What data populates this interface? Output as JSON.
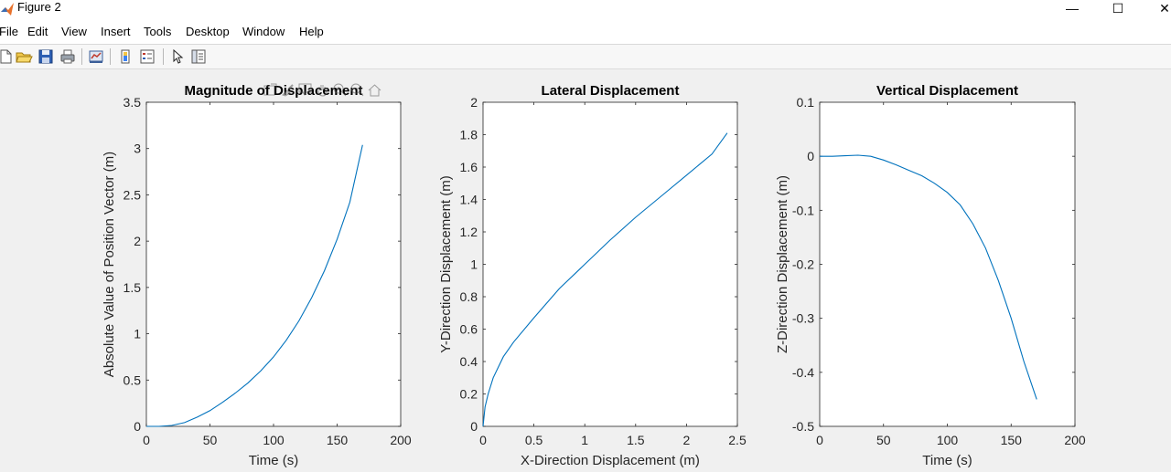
{
  "window": {
    "title": "Figure 2",
    "minimize_glyph": "—",
    "maximize_glyph": "☐",
    "close_glyph": "✕",
    "app_icon": "matlab-icon"
  },
  "menu": [
    "File",
    "Edit",
    "View",
    "Insert",
    "Tools",
    "Desktop",
    "Window",
    "Help"
  ],
  "toolbar": {
    "buttons": [
      "new-figure-icon",
      "open-file-icon",
      "save-icon",
      "print-icon",
      "link-plot-icon",
      "insert-colorbar-icon",
      "insert-legend-icon",
      "select-pointer-icon",
      "property-inspector-icon"
    ]
  },
  "axes_toolbar": [
    "export-icon",
    "brush-icon",
    "data-tips-icon",
    "pan-icon",
    "zoom-in-icon",
    "zoom-out-icon",
    "home-icon"
  ],
  "chart_data": [
    {
      "type": "line",
      "title": "Magnitude of Displacement",
      "xlabel": "Time (s)",
      "ylabel": "Absolute Value of Position Vector (m)",
      "xlim": [
        0,
        200
      ],
      "ylim": [
        0,
        3.5
      ],
      "xticks": [
        0,
        50,
        100,
        150,
        200
      ],
      "xtick_labels": [
        "0",
        "50",
        "100",
        "150",
        "200"
      ],
      "yticks": [
        0,
        0.5,
        1,
        1.5,
        2,
        2.5,
        3,
        3.5
      ],
      "ytick_labels": [
        "0",
        "0.5",
        "1",
        "1.5",
        "2",
        "2.5",
        "3",
        "3.5"
      ],
      "grid": false,
      "color": "#0072BD",
      "x": [
        0,
        10,
        20,
        30,
        40,
        50,
        60,
        70,
        80,
        90,
        100,
        110,
        120,
        130,
        140,
        150,
        160,
        170
      ],
      "y": [
        0,
        0.0,
        0.01,
        0.04,
        0.1,
        0.17,
        0.26,
        0.36,
        0.47,
        0.6,
        0.75,
        0.93,
        1.14,
        1.39,
        1.68,
        2.02,
        2.42,
        3.04
      ]
    },
    {
      "type": "line",
      "title": "Lateral Displacement",
      "xlabel": "X-Direction Displacement (m)",
      "ylabel": "Y-Direction Displacement (m)",
      "xlim": [
        0,
        2.5
      ],
      "ylim": [
        0,
        2
      ],
      "xticks": [
        0,
        0.5,
        1,
        1.5,
        2,
        2.5
      ],
      "xtick_labels": [
        "0",
        "0.5",
        "1",
        "1.5",
        "2",
        "2.5"
      ],
      "yticks": [
        0,
        0.2,
        0.4,
        0.6,
        0.8,
        1,
        1.2,
        1.4,
        1.6,
        1.8,
        2
      ],
      "ytick_labels": [
        "0",
        "0.2",
        "0.4",
        "0.6",
        "0.8",
        "1",
        "1.2",
        "1.4",
        "1.6",
        "1.8",
        "2"
      ],
      "grid": false,
      "color": "#0072BD",
      "x": [
        0,
        0.02,
        0.05,
        0.1,
        0.2,
        0.3,
        0.5,
        0.75,
        1.0,
        1.25,
        1.5,
        1.75,
        2.0,
        2.25,
        2.4
      ],
      "y": [
        0,
        0.12,
        0.2,
        0.3,
        0.43,
        0.52,
        0.67,
        0.85,
        1.0,
        1.15,
        1.29,
        1.42,
        1.55,
        1.68,
        1.81
      ]
    },
    {
      "type": "line",
      "title": "Vertical Displacement",
      "xlabel": "Time (s)",
      "ylabel": "Z-Direction Displacement (m)",
      "xlim": [
        0,
        200
      ],
      "ylim": [
        -0.5,
        0.1
      ],
      "xticks": [
        0,
        50,
        100,
        150,
        200
      ],
      "xtick_labels": [
        "0",
        "50",
        "100",
        "150",
        "200"
      ],
      "yticks": [
        -0.5,
        -0.4,
        -0.3,
        -0.2,
        -0.1,
        0,
        0.1
      ],
      "ytick_labels": [
        "-0.5",
        "-0.4",
        "-0.3",
        "-0.2",
        "-0.1",
        "0",
        "0.1"
      ],
      "grid": false,
      "color": "#0072BD",
      "x": [
        0,
        10,
        20,
        30,
        40,
        50,
        60,
        70,
        80,
        90,
        100,
        110,
        120,
        130,
        140,
        150,
        160,
        170
      ],
      "y": [
        0,
        0.0,
        0.001,
        0.002,
        0.0,
        -0.007,
        -0.016,
        -0.026,
        -0.036,
        -0.05,
        -0.067,
        -0.09,
        -0.125,
        -0.17,
        -0.23,
        -0.3,
        -0.38,
        -0.45
      ]
    }
  ]
}
